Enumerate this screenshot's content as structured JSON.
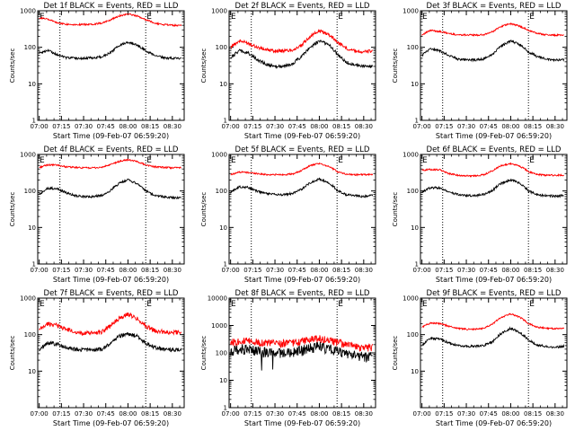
{
  "figure": {
    "start_label": "Start Time (09-Feb-07 06:59:20)",
    "ylabel": "Counts/sec",
    "marker_label": "E",
    "colors": {
      "events": "#000000",
      "lld": "#ff0000",
      "axes": "#000000"
    }
  },
  "chart_data": [
    {
      "type": "line",
      "title": "Det 1f BLACK = Events, RED = LLD",
      "xlabel": "Start Time (09-Feb-07 06:59:20)",
      "ylabel": "Counts/sec",
      "x_ticks": [
        "07:00",
        "07:15",
        "07:30",
        "07:45",
        "08:00",
        "08:15",
        "08:30"
      ],
      "y_ticks": [
        "1",
        "10",
        "100",
        "1000"
      ],
      "ylim": [
        1,
        1000
      ],
      "y_scale": "log",
      "vlines": [
        "07:14",
        "08:12"
      ],
      "x": [
        "07:00",
        "07:06",
        "07:12",
        "07:18",
        "07:24",
        "07:30",
        "07:36",
        "07:42",
        "07:48",
        "07:54",
        "08:00",
        "08:06",
        "08:12",
        "08:18",
        "08:24",
        "08:30",
        "08:36"
      ],
      "series": [
        {
          "name": "LLD",
          "values": [
            650,
            580,
            470,
            430,
            420,
            420,
            430,
            460,
            560,
            720,
            820,
            720,
            570,
            460,
            420,
            400,
            400
          ]
        },
        {
          "name": "Events",
          "values": [
            70,
            82,
            62,
            52,
            50,
            50,
            52,
            55,
            70,
            110,
            140,
            115,
            80,
            60,
            52,
            50,
            50
          ]
        }
      ]
    },
    {
      "type": "line",
      "title": "Det 2f BLACK = Events, RED = LLD",
      "xlabel": "Start Time (09-Feb-07 06:59:20)",
      "ylabel": "Counts/sec",
      "x_ticks": [
        "07:00",
        "07:15",
        "07:30",
        "07:45",
        "08:00",
        "08:15",
        "08:30"
      ],
      "y_ticks": [
        "1",
        "10",
        "100",
        "1000"
      ],
      "ylim": [
        1,
        1000
      ],
      "y_scale": "log",
      "vlines": [
        "07:14",
        "08:12"
      ],
      "x": [
        "07:00",
        "07:06",
        "07:12",
        "07:18",
        "07:24",
        "07:30",
        "07:36",
        "07:42",
        "07:48",
        "07:54",
        "08:00",
        "08:06",
        "08:12",
        "08:18",
        "08:24",
        "08:30",
        "08:36"
      ],
      "series": [
        {
          "name": "LLD",
          "values": [
            100,
            150,
            130,
            100,
            85,
            80,
            80,
            85,
            110,
            200,
            280,
            230,
            140,
            95,
            80,
            75,
            80
          ]
        },
        {
          "name": "Events",
          "values": [
            50,
            80,
            70,
            45,
            35,
            30,
            30,
            35,
            55,
            100,
            150,
            120,
            65,
            40,
            32,
            30,
            30
          ]
        }
      ]
    },
    {
      "type": "line",
      "title": "Det 3f BLACK = Events, RED = LLD",
      "xlabel": "Start Time (09-Feb-07 06:59:20)",
      "ylabel": "Counts/sec",
      "x_ticks": [
        "07:00",
        "07:15",
        "07:30",
        "07:45",
        "08:00",
        "08:15",
        "08:30"
      ],
      "y_ticks": [
        "1",
        "10",
        "100",
        "1000"
      ],
      "ylim": [
        1,
        1000
      ],
      "y_scale": "log",
      "vlines": [
        "07:14",
        "08:12"
      ],
      "x": [
        "07:00",
        "07:06",
        "07:12",
        "07:18",
        "07:24",
        "07:30",
        "07:36",
        "07:42",
        "07:48",
        "07:54",
        "08:00",
        "08:06",
        "08:12",
        "08:18",
        "08:24",
        "08:30",
        "08:36"
      ],
      "series": [
        {
          "name": "LLD",
          "values": [
            220,
            290,
            270,
            240,
            220,
            220,
            215,
            220,
            270,
            380,
            440,
            380,
            290,
            240,
            220,
            215,
            220
          ]
        },
        {
          "name": "Events",
          "values": [
            60,
            90,
            80,
            60,
            48,
            45,
            45,
            48,
            65,
            110,
            150,
            120,
            75,
            55,
            48,
            45,
            45
          ]
        }
      ]
    },
    {
      "type": "line",
      "title": "Det 4f BLACK = Events, RED = LLD",
      "xlabel": "Start Time (09-Feb-07 06:59:20)",
      "ylabel": "Counts/sec",
      "x_ticks": [
        "07:00",
        "07:15",
        "07:30",
        "07:45",
        "08:00",
        "08:15",
        "08:30"
      ],
      "y_ticks": [
        "1",
        "10",
        "100",
        "1000"
      ],
      "ylim": [
        1,
        1000
      ],
      "y_scale": "log",
      "vlines": [
        "07:14",
        "08:12"
      ],
      "x": [
        "07:00",
        "07:06",
        "07:12",
        "07:18",
        "07:24",
        "07:30",
        "07:36",
        "07:42",
        "07:48",
        "07:54",
        "08:00",
        "08:06",
        "08:12",
        "08:18",
        "08:24",
        "08:30",
        "08:36"
      ],
      "series": [
        {
          "name": "LLD",
          "values": [
            440,
            520,
            510,
            460,
            440,
            430,
            430,
            440,
            520,
            640,
            720,
            640,
            520,
            460,
            440,
            430,
            440
          ]
        },
        {
          "name": "Events",
          "values": [
            80,
            120,
            115,
            90,
            75,
            70,
            70,
            75,
            100,
            160,
            200,
            160,
            100,
            75,
            70,
            65,
            65
          ]
        }
      ]
    },
    {
      "type": "line",
      "title": "Det 5f BLACK = Events, RED = LLD",
      "xlabel": "Start Time (09-Feb-07 06:59:20)",
      "ylabel": "Counts/sec",
      "x_ticks": [
        "07:00",
        "07:15",
        "07:30",
        "07:45",
        "08:00",
        "08:15",
        "08:30"
      ],
      "y_ticks": [
        "1",
        "10",
        "100",
        "1000"
      ],
      "ylim": [
        1,
        1000
      ],
      "y_scale": "log",
      "vlines": [
        "07:14",
        "08:12"
      ],
      "x": [
        "07:00",
        "07:06",
        "07:12",
        "07:18",
        "07:24",
        "07:30",
        "07:36",
        "07:42",
        "07:48",
        "07:54",
        "08:00",
        "08:06",
        "08:12",
        "08:18",
        "08:24",
        "08:30",
        "08:36"
      ],
      "series": [
        {
          "name": "LLD",
          "values": [
            280,
            330,
            320,
            300,
            280,
            280,
            280,
            290,
            360,
            500,
            560,
            480,
            340,
            290,
            280,
            280,
            280
          ]
        },
        {
          "name": "Events",
          "values": [
            90,
            130,
            125,
            100,
            85,
            80,
            80,
            85,
            110,
            170,
            210,
            170,
            105,
            80,
            75,
            70,
            75
          ]
        }
      ]
    },
    {
      "type": "line",
      "title": "Det 6f BLACK = Events, RED = LLD",
      "xlabel": "Start Time (09-Feb-07 06:59:20)",
      "ylabel": "Counts/sec",
      "x_ticks": [
        "07:00",
        "07:15",
        "07:30",
        "07:45",
        "08:00",
        "08:15",
        "08:30"
      ],
      "y_ticks": [
        "1",
        "10",
        "100",
        "1000"
      ],
      "ylim": [
        1,
        1000
      ],
      "y_scale": "log",
      "vlines": [
        "07:14",
        "08:12"
      ],
      "x": [
        "07:00",
        "07:06",
        "07:12",
        "07:18",
        "07:24",
        "07:30",
        "07:36",
        "07:42",
        "07:48",
        "07:54",
        "08:00",
        "08:06",
        "08:12",
        "08:18",
        "08:24",
        "08:30",
        "08:36"
      ],
      "series": [
        {
          "name": "LLD",
          "values": [
            370,
            390,
            380,
            300,
            270,
            260,
            260,
            280,
            360,
            500,
            560,
            480,
            340,
            280,
            270,
            270,
            270
          ]
        },
        {
          "name": "Events",
          "values": [
            90,
            125,
            120,
            95,
            80,
            75,
            75,
            80,
            105,
            165,
            200,
            165,
            100,
            78,
            75,
            72,
            75
          ]
        }
      ]
    },
    {
      "type": "line",
      "title": "Det 7f BLACK = Events, RED = LLD",
      "xlabel": "Start Time (09-Feb-07 06:59:20)",
      "ylabel": "Counts/sec",
      "x_ticks": [
        "07:00",
        "07:15",
        "07:30",
        "07:45",
        "08:00",
        "08:15",
        "08:30"
      ],
      "y_ticks": [
        "10",
        "100",
        "1000"
      ],
      "ylim": [
        1,
        1000
      ],
      "y_scale": "log",
      "vlines": [
        "07:14",
        "08:12"
      ],
      "x": [
        "07:00",
        "07:06",
        "07:12",
        "07:18",
        "07:24",
        "07:30",
        "07:36",
        "07:42",
        "07:48",
        "07:54",
        "08:00",
        "08:06",
        "08:12",
        "08:18",
        "08:24",
        "08:30",
        "08:36"
      ],
      "series": [
        {
          "name": "LLD",
          "values": [
            130,
            200,
            180,
            140,
            120,
            110,
            110,
            120,
            170,
            280,
            360,
            280,
            170,
            130,
            120,
            115,
            120
          ]
        },
        {
          "name": "Events",
          "values": [
            40,
            60,
            55,
            45,
            40,
            38,
            38,
            40,
            55,
            90,
            110,
            90,
            58,
            45,
            40,
            38,
            40
          ]
        }
      ]
    },
    {
      "type": "line",
      "title": "Det 8f BLACK = Events, RED = LLD",
      "xlabel": "Start Time (09-Feb-07 06:59:20)",
      "ylabel": "Counts/sec",
      "x_ticks": [
        "07:00",
        "07:15",
        "07:30",
        "07:45",
        "08:00",
        "08:15",
        "08:30"
      ],
      "y_ticks": [
        "1",
        "10",
        "100",
        "1000",
        "10000"
      ],
      "ylim": [
        1,
        10000
      ],
      "y_scale": "log",
      "vlines": [
        "07:14",
        "08:12"
      ],
      "x": [
        "07:00",
        "07:06",
        "07:12",
        "07:18",
        "07:24",
        "07:30",
        "07:36",
        "07:42",
        "07:48",
        "07:54",
        "08:00",
        "08:06",
        "08:12",
        "08:18",
        "08:24",
        "08:30",
        "08:36"
      ],
      "series": [
        {
          "name": "LLD",
          "values": [
            250,
            280,
            270,
            250,
            240,
            230,
            230,
            240,
            270,
            320,
            340,
            300,
            250,
            200,
            170,
            160,
            160
          ]
        },
        {
          "name": "Events",
          "values": [
            120,
            150,
            140,
            120,
            110,
            110,
            105,
            110,
            130,
            160,
            180,
            150,
            120,
            100,
            90,
            80,
            85
          ]
        }
      ]
    },
    {
      "type": "line",
      "title": "Det 9f BLACK = Events, RED = LLD",
      "xlabel": "Start Time (09-Feb-07 06:59:20)",
      "ylabel": "Counts/sec",
      "x_ticks": [
        "07:00",
        "07:15",
        "07:30",
        "07:45",
        "08:00",
        "08:15",
        "08:30"
      ],
      "y_ticks": [
        "10",
        "100",
        "1000"
      ],
      "ylim": [
        1,
        1000
      ],
      "y_scale": "log",
      "vlines": [
        "07:14",
        "08:12"
      ],
      "x": [
        "07:00",
        "07:06",
        "07:12",
        "07:18",
        "07:24",
        "07:30",
        "07:36",
        "07:42",
        "07:48",
        "07:54",
        "08:00",
        "08:06",
        "08:12",
        "08:18",
        "08:24",
        "08:30",
        "08:36"
      ],
      "series": [
        {
          "name": "LLD",
          "values": [
            160,
            210,
            200,
            170,
            150,
            140,
            140,
            150,
            200,
            300,
            370,
            300,
            200,
            160,
            150,
            145,
            150
          ]
        },
        {
          "name": "Events",
          "values": [
            50,
            80,
            75,
            60,
            50,
            48,
            48,
            50,
            65,
            110,
            150,
            115,
            70,
            52,
            48,
            45,
            48
          ]
        }
      ]
    }
  ]
}
